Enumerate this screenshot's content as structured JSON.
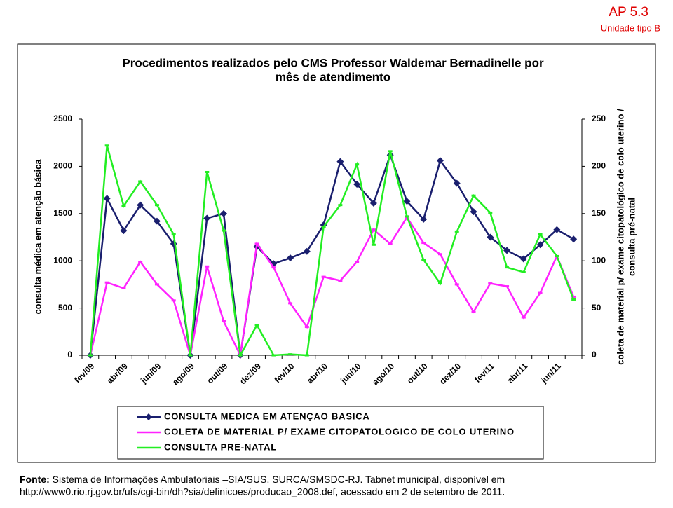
{
  "header": {
    "title": "AP 5.3",
    "subtitle": "Unidade tipo B"
  },
  "chart_data": {
    "type": "line",
    "title": [
      "Procedimentos realizados pelo CMS Professor Waldemar Bernadinelle por",
      "mês de atendimento"
    ],
    "ylabel": "consulta  médica em atenção básica",
    "y2label": [
      "coleta de material p/ exame citopatológico de colo uterino /",
      "consulta  pré-natal"
    ],
    "categories": [
      "fev/09",
      null,
      "abr/09",
      null,
      "jun/09",
      null,
      "ago/09",
      null,
      "out/09",
      null,
      "dez/09",
      null,
      "fev/10",
      null,
      "abr/10",
      null,
      "jun/10",
      null,
      "ago/10",
      null,
      "out/10",
      null,
      "dez/10",
      null,
      "fev/11",
      null,
      "abr/11",
      null,
      "jun/11",
      null
    ],
    "ylim": [
      0,
      2500
    ],
    "yticks": [
      0,
      500,
      1000,
      1500,
      2000,
      2500
    ],
    "y2lim": [
      0,
      250
    ],
    "y2ticks": [
      0,
      50,
      100,
      150,
      200,
      250
    ],
    "series": [
      {
        "name": "CONSULTA MEDICA EM ATENÇAO BASICA",
        "color": "#1a1f6e",
        "marker": "diamond",
        "axis": "y",
        "values": [
          0,
          1660,
          1320,
          1590,
          1420,
          1180,
          0,
          1450,
          1500,
          0,
          1150,
          970,
          1030,
          1100,
          1380,
          2050,
          1810,
          1610,
          2120,
          1630,
          1440,
          2060,
          1820,
          1520,
          1250,
          1110,
          1020,
          1170,
          1330,
          1230
        ]
      },
      {
        "name": "COLETA DE MATERIAL P/ EXAME CITOPATOLOGICO DE COLO UTERINO",
        "color": "#ff22ff",
        "marker": "dash",
        "axis": "y2",
        "values": [
          0,
          77,
          71,
          99,
          75,
          58,
          0,
          94,
          36,
          0,
          118,
          93,
          55,
          30,
          83,
          79,
          99,
          133,
          118,
          146,
          119,
          107,
          75,
          46,
          76,
          73,
          40,
          66,
          105,
          62
        ]
      },
      {
        "name": "CONSULTA PRE-NATAL",
        "color": "#22ee22",
        "marker": "dash",
        "axis": "y2",
        "values": [
          0,
          222,
          158,
          184,
          159,
          128,
          0,
          194,
          132,
          0,
          32,
          0,
          1,
          0,
          136,
          159,
          202,
          117,
          216,
          147,
          101,
          76,
          131,
          169,
          151,
          93,
          88,
          128,
          105,
          59
        ]
      }
    ]
  },
  "footer": {
    "label": "Fonte:",
    "text": [
      "Sistema de Informações Ambulatoriais –SIA/SUS. SURCA/SMSDC-RJ. Tabnet municipal, disponível em",
      "http://www0.rio.rj.gov.br/ufs/cgi-bin/dh?sia/definicoes/producao_2008.def,  acessado em 2 de setembro de 2011."
    ]
  }
}
